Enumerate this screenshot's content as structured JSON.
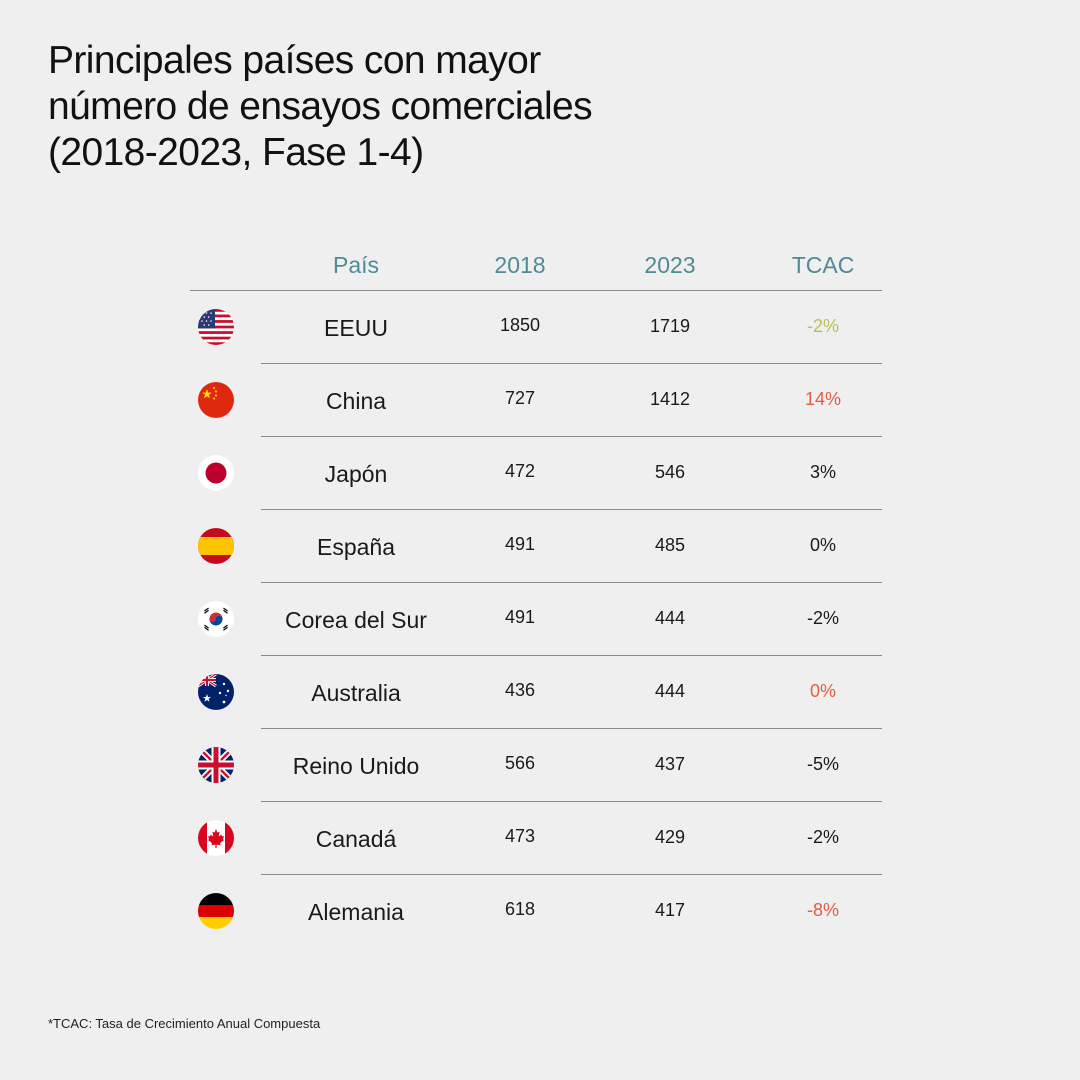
{
  "title": {
    "line1": "Principales países con mayor",
    "line2": "número de ensayos comerciales",
    "line3": "(2018-2023, Fase 1-4)"
  },
  "table": {
    "headers": {
      "country": "País",
      "y2018": "2018",
      "y2023": "2023",
      "cagr": "TCAC"
    },
    "rows": [
      {
        "country": "EEUU",
        "flag_icon": "usa-flag-icon",
        "y2018": "1850",
        "y2023": "1719",
        "cagr": "-2%",
        "cagr_color": "#b9be55"
      },
      {
        "country": "China",
        "flag_icon": "china-flag-icon",
        "y2018": "727",
        "y2023": "1412",
        "cagr": "14%",
        "cagr_color": "#e45c42"
      },
      {
        "country": "Japón",
        "flag_icon": "japan-flag-icon",
        "y2018": "472",
        "y2023": "546",
        "cagr": "3%",
        "cagr_color": "#1a1a1a"
      },
      {
        "country": "España",
        "flag_icon": "spain-flag-icon",
        "y2018": "491",
        "y2023": "485",
        "cagr": "0%",
        "cagr_color": "#1a1a1a"
      },
      {
        "country": "Corea del Sur",
        "flag_icon": "south-korea-flag-icon",
        "y2018": "491",
        "y2023": "444",
        "cagr": "-2%",
        "cagr_color": "#1a1a1a"
      },
      {
        "country": "Australia",
        "flag_icon": "australia-flag-icon",
        "y2018": "436",
        "y2023": "444",
        "cagr": "0%",
        "cagr_color": "#e45c42"
      },
      {
        "country": "Reino Unido",
        "flag_icon": "uk-flag-icon",
        "y2018": "566",
        "y2023": "437",
        "cagr": "-5%",
        "cagr_color": "#1a1a1a"
      },
      {
        "country": "Canadá",
        "flag_icon": "canada-flag-icon",
        "y2018": "473",
        "y2023": "429",
        "cagr": "-2%",
        "cagr_color": "#1a1a1a"
      },
      {
        "country": "Alemania",
        "flag_icon": "germany-flag-icon",
        "y2018": "618",
        "y2023": "417",
        "cagr": "-8%",
        "cagr_color": "#e45c42"
      }
    ]
  },
  "footnote": "*TCAC: Tasa de Crecimiento Anual Compuesta",
  "colors": {
    "background": "#efefef",
    "header_text": "#4f8a95",
    "text": "#1a1a1a",
    "divider": "#8a8a8a"
  }
}
